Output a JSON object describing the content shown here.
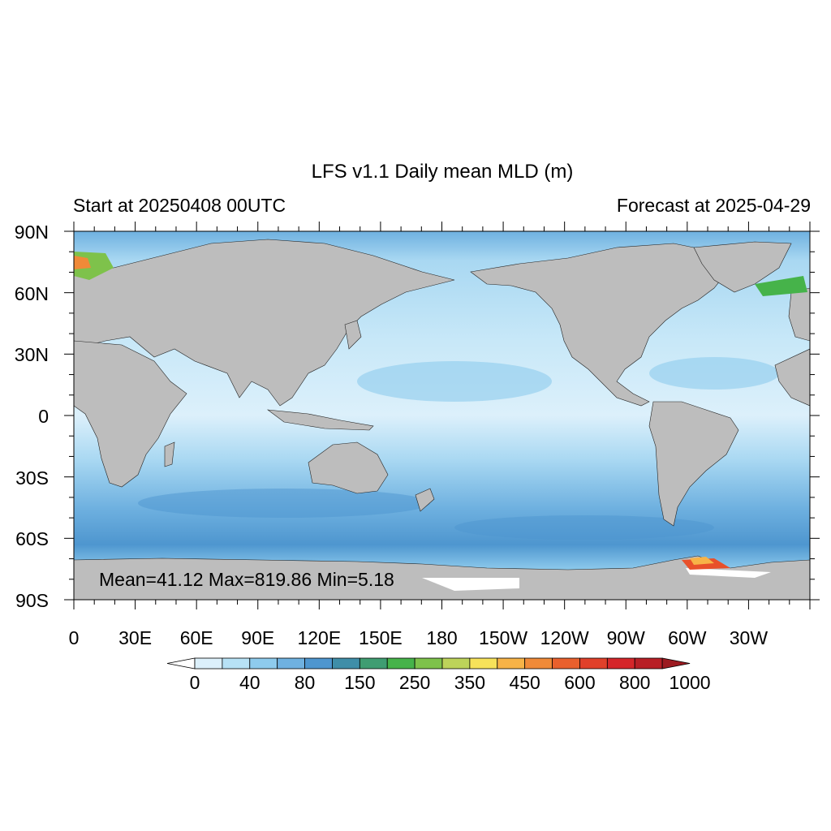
{
  "map": {
    "title": "LFS v1.1 Daily mean MLD (m)",
    "left_subtitle": "Start at 20250408 00UTC",
    "right_subtitle": "Forecast at 2025-04-29",
    "stats": "Mean=41.12  Max=819.86  Min=5.18",
    "lat_labels": [
      "90N",
      "60N",
      "30N",
      "0",
      "30S",
      "60S",
      "90S"
    ],
    "lon_labels": [
      "0",
      "30E",
      "60E",
      "90E",
      "120E",
      "150E",
      "180",
      "150W",
      "120W",
      "90W",
      "60W",
      "30W"
    ],
    "colors": {
      "land": "#bdbdbd",
      "ocean_light": "#dcf0fb",
      "ocean_mid": "#a9d8f2",
      "ocean_deep": "#6fb1e0",
      "ocean_darker": "#4a90c9",
      "deep_mixing": "#e8502a"
    }
  },
  "colorbar": {
    "labels": [
      "0",
      "40",
      "80",
      "150",
      "250",
      "350",
      "450",
      "600",
      "800",
      "1000"
    ],
    "colors": [
      "#ffffff",
      "#dcf0fb",
      "#b7e2f6",
      "#8ecbed",
      "#6fb1e0",
      "#4e96cf",
      "#3f8ea8",
      "#3f9d72",
      "#46b34a",
      "#7ec24b",
      "#bdd35a",
      "#f7e25a",
      "#f7b347",
      "#f08a38",
      "#e9602d",
      "#e0402a",
      "#d5262a",
      "#b81f26",
      "#9c1a20"
    ]
  }
}
